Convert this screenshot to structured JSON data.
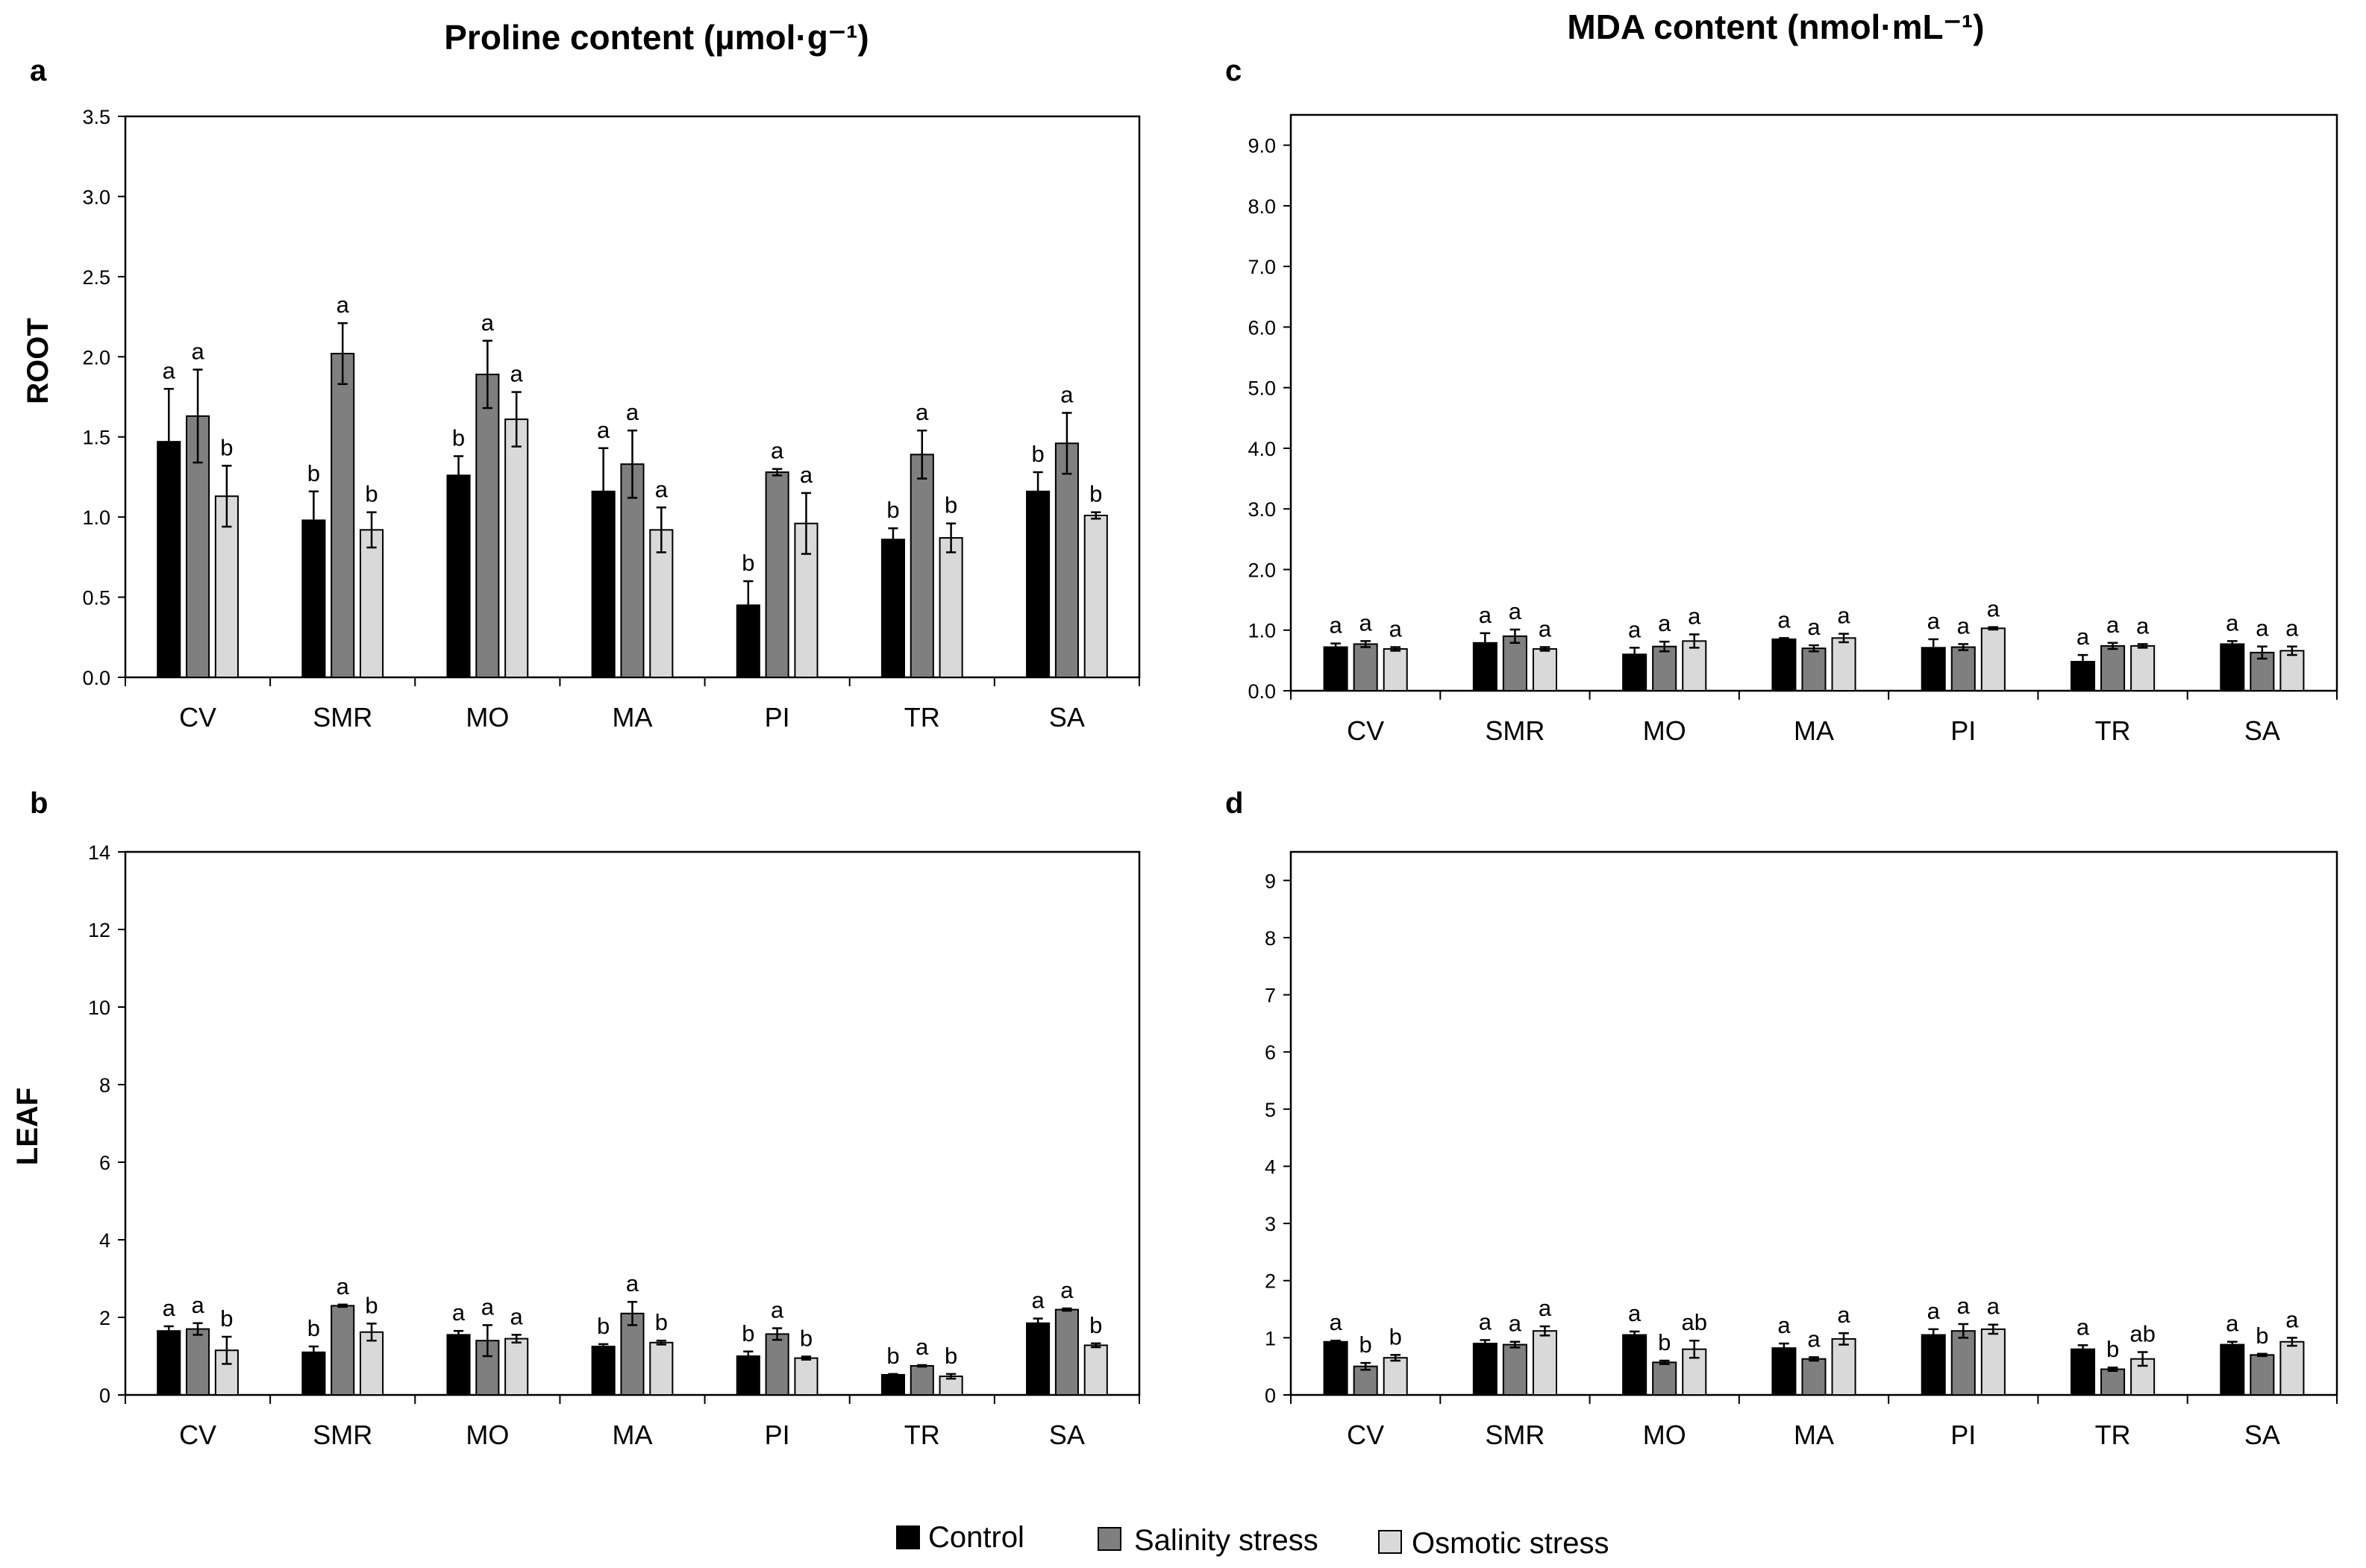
{
  "column_titles": {
    "proline": "Proline content (µmol·g⁻¹)",
    "mda": "MDA content (nmol·mL⁻¹)"
  },
  "row_labels": {
    "root": "ROOT",
    "leaf": "LEAF"
  },
  "legend": [
    {
      "label": "Control",
      "color": "#000000"
    },
    {
      "label": "Salinity stress",
      "color": "#7f7f7f"
    },
    {
      "label": "Osmotic stress",
      "color": "#d9d9d9"
    }
  ],
  "colors": {
    "control": "#000000",
    "salinity": "#7f7f7f",
    "osmotic": "#d9d9d9",
    "frame": "#000000"
  },
  "chart_data": [
    {
      "type": "bar",
      "panel": "a",
      "categories": [
        "CV",
        "SMR",
        "MO",
        "MA",
        "PI",
        "TR",
        "SA"
      ],
      "ylim": [
        0,
        3.5
      ],
      "yticks": [
        "0.0",
        "0.5",
        "1.0",
        "1.5",
        "2.0",
        "2.5",
        "3.0",
        "3.5"
      ],
      "series": [
        {
          "name": "Control",
          "values": [
            1.47,
            0.98,
            1.26,
            1.16,
            0.45,
            0.86,
            1.16
          ],
          "errors": [
            0.33,
            0.18,
            0.12,
            0.27,
            0.15,
            0.07,
            0.12
          ],
          "labels": [
            "a",
            "b",
            "b",
            "a",
            "b",
            "b",
            "b"
          ]
        },
        {
          "name": "Salinity stress",
          "values": [
            1.63,
            2.02,
            1.89,
            1.33,
            1.28,
            1.39,
            1.46
          ],
          "errors": [
            0.29,
            0.19,
            0.21,
            0.21,
            0.02,
            0.15,
            0.19
          ],
          "labels": [
            "a",
            "a",
            "a",
            "a",
            "a",
            "a",
            "a"
          ]
        },
        {
          "name": "Osmotic stress",
          "values": [
            1.13,
            0.92,
            1.61,
            0.92,
            0.96,
            0.87,
            1.01
          ],
          "errors": [
            0.19,
            0.11,
            0.17,
            0.14,
            0.19,
            0.09,
            0.02
          ],
          "labels": [
            "b",
            "b",
            "a",
            "a",
            "a",
            "b",
            "b"
          ]
        }
      ]
    },
    {
      "type": "bar",
      "panel": "b",
      "categories": [
        "CV",
        "SMR",
        "MO",
        "MA",
        "PI",
        "TR",
        "SA"
      ],
      "ylim": [
        0,
        14
      ],
      "yticks": [
        "0",
        "2",
        "4",
        "6",
        "8",
        "10",
        "12",
        "14"
      ],
      "series": [
        {
          "name": "Control",
          "values": [
            1.65,
            1.1,
            1.55,
            1.25,
            1.0,
            0.52,
            1.85
          ],
          "errors": [
            0.12,
            0.15,
            0.1,
            0.06,
            0.12,
            0.02,
            0.12
          ],
          "labels": [
            "a",
            "b",
            "a",
            "b",
            "b",
            "b",
            "a"
          ]
        },
        {
          "name": "Salinity stress",
          "values": [
            1.7,
            2.3,
            1.4,
            2.1,
            1.57,
            0.75,
            2.2
          ],
          "errors": [
            0.15,
            0.03,
            0.4,
            0.3,
            0.15,
            0.02,
            0.03
          ],
          "labels": [
            "a",
            "a",
            "a",
            "a",
            "a",
            "a",
            "a"
          ]
        },
        {
          "name": "Osmotic stress",
          "values": [
            1.15,
            1.62,
            1.45,
            1.35,
            0.95,
            0.48,
            1.28
          ],
          "errors": [
            0.35,
            0.22,
            0.1,
            0.05,
            0.04,
            0.06,
            0.05
          ],
          "labels": [
            "b",
            "b",
            "a",
            "b",
            "b",
            "b",
            "b"
          ]
        }
      ]
    },
    {
      "type": "bar",
      "panel": "c",
      "categories": [
        "CV",
        "SMR",
        "MO",
        "MA",
        "PI",
        "TR",
        "SA"
      ],
      "ylim": [
        0,
        9.5
      ],
      "yticks": [
        "0.0",
        "1.0",
        "2.0",
        "3.0",
        "4.0",
        "5.0",
        "6.0",
        "7.0",
        "8.0",
        "9.0"
      ],
      "series": [
        {
          "name": "Control",
          "values": [
            0.72,
            0.79,
            0.6,
            0.85,
            0.71,
            0.48,
            0.77
          ],
          "errors": [
            0.06,
            0.16,
            0.11,
            0.02,
            0.14,
            0.11,
            0.05
          ],
          "labels": [
            "a",
            "a",
            "a",
            "a",
            "a",
            "a",
            "a"
          ]
        },
        {
          "name": "Salinity stress",
          "values": [
            0.77,
            0.9,
            0.73,
            0.7,
            0.72,
            0.74,
            0.63
          ],
          "errors": [
            0.05,
            0.11,
            0.08,
            0.05,
            0.05,
            0.05,
            0.1
          ],
          "labels": [
            "a",
            "a",
            "a",
            "a",
            "a",
            "a",
            "a"
          ]
        },
        {
          "name": "Osmotic stress",
          "values": [
            0.69,
            0.69,
            0.82,
            0.87,
            1.03,
            0.74,
            0.66
          ],
          "errors": [
            0.03,
            0.03,
            0.11,
            0.07,
            0.02,
            0.03,
            0.07
          ],
          "labels": [
            "a",
            "a",
            "a",
            "a",
            "a",
            "a",
            "a"
          ]
        }
      ]
    },
    {
      "type": "bar",
      "panel": "d",
      "categories": [
        "CV",
        "SMR",
        "MO",
        "MA",
        "PI",
        "TR",
        "SA"
      ],
      "ylim": [
        0,
        9.5
      ],
      "yticks": [
        "0",
        "1",
        "2",
        "3",
        "4",
        "5",
        "6",
        "7",
        "8",
        "9"
      ],
      "series": [
        {
          "name": "Control",
          "values": [
            0.93,
            0.9,
            1.05,
            0.82,
            1.05,
            0.8,
            0.88
          ],
          "errors": [
            0.02,
            0.06,
            0.06,
            0.08,
            0.1,
            0.07,
            0.05
          ],
          "labels": [
            "a",
            "a",
            "a",
            "a",
            "a",
            "a",
            "a"
          ]
        },
        {
          "name": "Salinity stress",
          "values": [
            0.5,
            0.88,
            0.57,
            0.63,
            1.12,
            0.45,
            0.7
          ],
          "errors": [
            0.06,
            0.05,
            0.03,
            0.03,
            0.12,
            0.03,
            0.02
          ],
          "labels": [
            "b",
            "a",
            "b",
            "a",
            "a",
            "b",
            "b"
          ]
        },
        {
          "name": "Osmotic stress",
          "values": [
            0.65,
            1.12,
            0.8,
            0.98,
            1.15,
            0.63,
            0.93
          ],
          "errors": [
            0.05,
            0.08,
            0.15,
            0.1,
            0.08,
            0.12,
            0.07
          ],
          "labels": [
            "b",
            "a",
            "ab",
            "a",
            "a",
            "ab",
            "a"
          ]
        }
      ]
    }
  ]
}
